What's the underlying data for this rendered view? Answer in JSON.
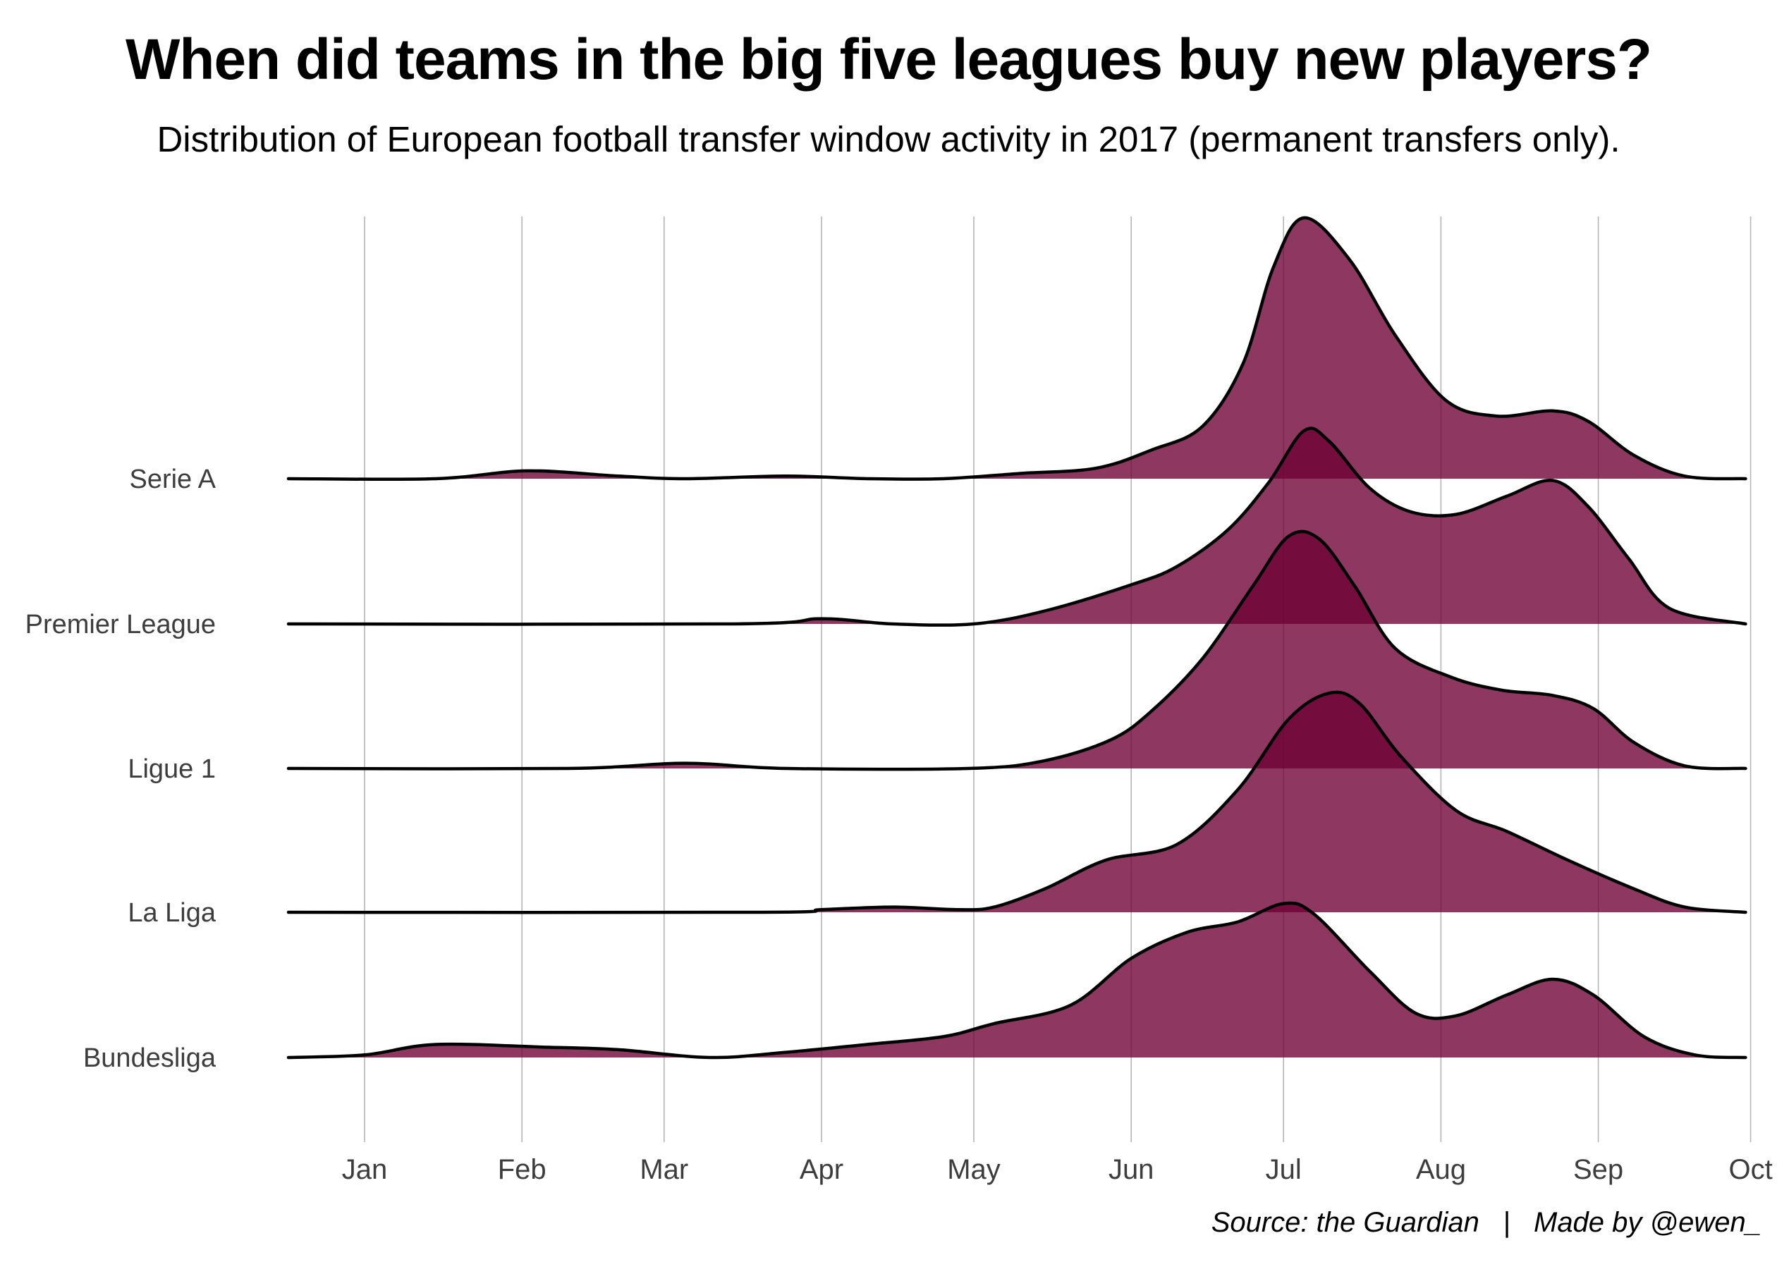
{
  "chart_data": {
    "type": "ridgeline",
    "title": "When did teams in the big five leagues buy new players?",
    "subtitle": "Distribution of European football transfer window activity in 2017 (permanent transfers only).",
    "caption": "Source: the Guardian   |   Made by @ewen_",
    "xlabel": "",
    "ylabel": "",
    "x_ticks": [
      "Jan",
      "Feb",
      "Mar",
      "Apr",
      "May",
      "Jun",
      "Jul",
      "Aug",
      "Sep",
      "Oct"
    ],
    "x_range": [
      "Dec 17",
      "Sep 30"
    ],
    "grid": "vertical major gridlines at month starts",
    "fill_color": "#8b3460",
    "overlap_color": "#74073d",
    "line_color": "#000000",
    "density_scale_note": "relative density, Serie A peak = 1.0",
    "categories": [
      "Serie A",
      "Premier League",
      "Ligue 1",
      "La Liga",
      "Bundesliga"
    ],
    "series": [
      {
        "name": "Serie A",
        "points": [
          [
            "Dec 17",
            0.0
          ],
          [
            "Jan 15",
            0.0
          ],
          [
            "Feb 2",
            0.03
          ],
          [
            "Feb 20",
            0.01
          ],
          [
            "Mar 5",
            0.0
          ],
          [
            "Mar 25",
            0.01
          ],
          [
            "Apr 10",
            0.0
          ],
          [
            "Apr 25",
            0.0
          ],
          [
            "May 10",
            0.02
          ],
          [
            "May 25",
            0.04
          ],
          [
            "Jun 5",
            0.11
          ],
          [
            "Jun 15",
            0.2
          ],
          [
            "Jun 23",
            0.44
          ],
          [
            "Jun 29",
            0.81
          ],
          [
            "Jul 5",
            1.0
          ],
          [
            "Jul 14",
            0.84
          ],
          [
            "Jul 23",
            0.55
          ],
          [
            "Aug 2",
            0.3
          ],
          [
            "Aug 12",
            0.24
          ],
          [
            "Aug 23",
            0.26
          ],
          [
            "Aug 30",
            0.22
          ],
          [
            "Sep 8",
            0.09
          ],
          [
            "Sep 18",
            0.01
          ],
          [
            "Sep 30",
            0.0
          ]
        ]
      },
      {
        "name": "Premier League",
        "points": [
          [
            "Dec 17",
            0.0
          ],
          [
            "Mar 15",
            0.0
          ],
          [
            "Apr 1",
            0.02
          ],
          [
            "Apr 15",
            0.0
          ],
          [
            "May 1",
            0.0
          ],
          [
            "May 15",
            0.05
          ],
          [
            "Jun 1",
            0.15
          ],
          [
            "Jun 10",
            0.22
          ],
          [
            "Jun 20",
            0.36
          ],
          [
            "Jun 28",
            0.54
          ],
          [
            "Jul 5",
            0.74
          ],
          [
            "Jul 10",
            0.7
          ],
          [
            "Jul 18",
            0.52
          ],
          [
            "Jul 26",
            0.43
          ],
          [
            "Aug 4",
            0.42
          ],
          [
            "Aug 14",
            0.49
          ],
          [
            "Aug 23",
            0.55
          ],
          [
            "Aug 30",
            0.45
          ],
          [
            "Sep 7",
            0.25
          ],
          [
            "Sep 15",
            0.06
          ],
          [
            "Sep 30",
            0.0
          ]
        ]
      },
      {
        "name": "Ligue 1",
        "points": [
          [
            "Dec 17",
            0.0
          ],
          [
            "Feb 10",
            0.0
          ],
          [
            "Mar 5",
            0.02
          ],
          [
            "Mar 25",
            0.0
          ],
          [
            "Apr 30",
            0.0
          ],
          [
            "May 15",
            0.03
          ],
          [
            "May 28",
            0.11
          ],
          [
            "Jun 5",
            0.22
          ],
          [
            "Jun 15",
            0.42
          ],
          [
            "Jun 25",
            0.7
          ],
          [
            "Jul 2",
            0.89
          ],
          [
            "Jul 8",
            0.88
          ],
          [
            "Jul 15",
            0.7
          ],
          [
            "Jul 23",
            0.46
          ],
          [
            "Aug 3",
            0.35
          ],
          [
            "Aug 13",
            0.3
          ],
          [
            "Aug 23",
            0.28
          ],
          [
            "Aug 31",
            0.23
          ],
          [
            "Sep 8",
            0.1
          ],
          [
            "Sep 18",
            0.01
          ],
          [
            "Sep 30",
            0.0
          ]
        ]
      },
      {
        "name": "La Liga",
        "points": [
          [
            "Dec 17",
            0.0
          ],
          [
            "Mar 20",
            0.0
          ],
          [
            "Apr 1",
            0.01
          ],
          [
            "Apr 15",
            0.02
          ],
          [
            "Apr 28",
            0.01
          ],
          [
            "May 5",
            0.02
          ],
          [
            "May 15",
            0.09
          ],
          [
            "May 27",
            0.2
          ],
          [
            "Jun 10",
            0.26
          ],
          [
            "Jun 22",
            0.47
          ],
          [
            "Jul 2",
            0.74
          ],
          [
            "Jul 10",
            0.84
          ],
          [
            "Jul 16",
            0.8
          ],
          [
            "Jul 24",
            0.6
          ],
          [
            "Aug 4",
            0.39
          ],
          [
            "Aug 14",
            0.31
          ],
          [
            "Aug 26",
            0.2
          ],
          [
            "Sep 8",
            0.09
          ],
          [
            "Sep 18",
            0.02
          ],
          [
            "Sep 30",
            0.0
          ]
        ]
      },
      {
        "name": "Bundesliga",
        "points": [
          [
            "Dec 17",
            0.0
          ],
          [
            "Jan 1",
            0.01
          ],
          [
            "Jan 15",
            0.05
          ],
          [
            "Feb 5",
            0.04
          ],
          [
            "Feb 20",
            0.03
          ],
          [
            "Mar 10",
            0.0
          ],
          [
            "Mar 25",
            0.02
          ],
          [
            "Apr 10",
            0.05
          ],
          [
            "Apr 25",
            0.08
          ],
          [
            "May 5",
            0.13
          ],
          [
            "May 20",
            0.2
          ],
          [
            "Jun 1",
            0.38
          ],
          [
            "Jun 12",
            0.48
          ],
          [
            "Jun 22",
            0.52
          ],
          [
            "Jul 1",
            0.59
          ],
          [
            "Jul 7",
            0.55
          ],
          [
            "Jul 18",
            0.33
          ],
          [
            "Jul 27",
            0.17
          ],
          [
            "Aug 4",
            0.16
          ],
          [
            "Aug 14",
            0.24
          ],
          [
            "Aug 23",
            0.3
          ],
          [
            "Aug 31",
            0.24
          ],
          [
            "Sep 10",
            0.08
          ],
          [
            "Sep 20",
            0.01
          ],
          [
            "Sep 30",
            0.0
          ]
        ]
      }
    ]
  }
}
